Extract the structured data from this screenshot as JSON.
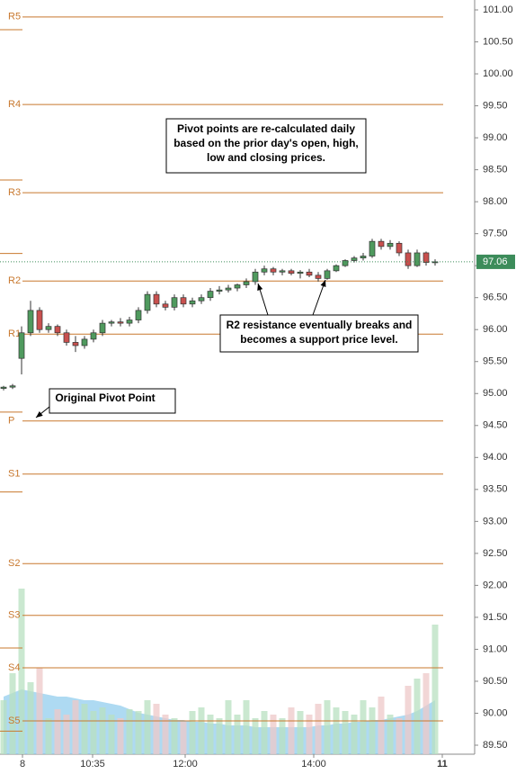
{
  "chart_data": {
    "type": "candlestick",
    "ylim": [
      89.45,
      101.08
    ],
    "yticks": [
      {
        "value": 101,
        "label": "101.00"
      },
      {
        "value": 100.5,
        "label": "100.50"
      },
      {
        "value": 100,
        "label": "100.00"
      },
      {
        "value": 99.5,
        "label": "99.50"
      },
      {
        "value": 99,
        "label": "99.00"
      },
      {
        "value": 98.5,
        "label": "98.50"
      },
      {
        "value": 98,
        "label": "98.00"
      },
      {
        "value": 97.5,
        "label": "97.50"
      },
      {
        "value": 97,
        "label": "97.00"
      },
      {
        "value": 96.5,
        "label": "96.50"
      },
      {
        "value": 96,
        "label": "96.00"
      },
      {
        "value": 95.5,
        "label": "95.50"
      },
      {
        "value": 95,
        "label": "95.00"
      },
      {
        "value": 94.5,
        "label": "94.50"
      },
      {
        "value": 94,
        "label": "94.00"
      },
      {
        "value": 93.5,
        "label": "93.50"
      },
      {
        "value": 93,
        "label": "93.00"
      },
      {
        "value": 92.5,
        "label": "92.50"
      },
      {
        "value": 92,
        "label": "92.00"
      },
      {
        "value": 91.5,
        "label": "91.50"
      },
      {
        "value": 91,
        "label": "91.00"
      },
      {
        "value": 90.5,
        "label": "90.50"
      },
      {
        "value": 90,
        "label": "90.00"
      },
      {
        "value": 89.5,
        "label": "89.50"
      }
    ],
    "xlim": [
      -0.4,
      52.4
    ],
    "xticks": [
      {
        "value": 2.1,
        "label": "8"
      },
      {
        "value": 9.9,
        "label": "10:35"
      },
      {
        "value": 20.2,
        "label": "12:00"
      },
      {
        "value": 34.5,
        "label": "14:00"
      },
      {
        "value": 48.8,
        "label": "11"
      }
    ],
    "open": [
      95.08,
      95.1,
      95.55,
      95.95,
      96.3,
      96.0,
      96.05,
      95.95,
      95.8,
      95.75,
      95.85,
      95.95,
      96.1,
      96.12,
      96.1,
      96.15,
      96.3,
      96.55,
      96.4,
      96.35,
      96.5,
      96.4,
      96.45,
      96.5,
      96.6,
      96.62,
      96.65,
      96.7,
      96.75,
      96.9,
      96.95,
      96.9,
      96.92,
      96.88,
      96.9,
      96.85,
      96.8,
      96.92,
      97.0,
      97.08,
      97.12,
      97.15,
      97.38,
      97.3,
      97.35,
      97.2,
      97.0,
      97.2,
      97.05
    ],
    "high": [
      95.12,
      95.15,
      96.05,
      96.45,
      96.35,
      96.1,
      96.08,
      96.0,
      95.9,
      95.9,
      96.0,
      96.15,
      96.15,
      96.18,
      96.2,
      96.35,
      96.6,
      96.6,
      96.45,
      96.55,
      96.55,
      96.5,
      96.55,
      96.65,
      96.68,
      96.7,
      96.72,
      96.8,
      96.95,
      97.0,
      96.98,
      96.95,
      96.95,
      96.93,
      96.95,
      96.9,
      96.95,
      97.02,
      97.1,
      97.15,
      97.2,
      97.42,
      97.42,
      97.4,
      97.38,
      97.25,
      97.25,
      97.22,
      97.1
    ],
    "low": [
      95.05,
      95.07,
      95.3,
      95.9,
      95.95,
      95.95,
      95.9,
      95.75,
      95.65,
      95.7,
      95.8,
      95.9,
      96.05,
      96.05,
      96.05,
      96.1,
      96.25,
      96.35,
      96.3,
      96.3,
      96.35,
      96.35,
      96.4,
      96.45,
      96.55,
      96.58,
      96.6,
      96.65,
      96.7,
      96.85,
      96.85,
      96.85,
      96.85,
      96.8,
      96.82,
      96.75,
      96.78,
      96.9,
      96.98,
      97.05,
      97.08,
      97.12,
      97.25,
      97.25,
      97.15,
      96.95,
      96.98,
      97.0,
      97.0
    ],
    "close": [
      95.1,
      95.12,
      95.95,
      96.3,
      96.0,
      96.05,
      95.95,
      95.8,
      95.75,
      95.85,
      95.95,
      96.1,
      96.12,
      96.1,
      96.15,
      96.3,
      96.55,
      96.4,
      96.35,
      96.5,
      96.4,
      96.45,
      96.5,
      96.6,
      96.62,
      96.65,
      96.7,
      96.75,
      96.9,
      96.95,
      96.9,
      96.92,
      96.88,
      96.9,
      96.85,
      96.8,
      96.92,
      97.0,
      97.08,
      97.12,
      97.15,
      97.38,
      97.3,
      97.35,
      97.2,
      97.0,
      97.2,
      97.05,
      97.06
    ],
    "volume_lim": [
      0,
      100
    ],
    "volume": [
      30,
      45,
      92,
      40,
      48,
      20,
      25,
      22,
      30,
      28,
      24,
      26,
      22,
      20,
      25,
      24,
      30,
      28,
      22,
      20,
      18,
      24,
      26,
      22,
      20,
      30,
      22,
      30,
      20,
      24,
      22,
      20,
      26,
      24,
      22,
      28,
      30,
      26,
      24,
      22,
      30,
      26,
      32,
      22,
      20,
      38,
      42,
      45,
      72
    ],
    "volume_avg": [
      32,
      34,
      36,
      35,
      34,
      33,
      32,
      32,
      31,
      30,
      30,
      29,
      28,
      27,
      25,
      23,
      22,
      21,
      20,
      19,
      19,
      18,
      18,
      17,
      17,
      16,
      16,
      16,
      15,
      15,
      15,
      15,
      15,
      15,
      15,
      16,
      16,
      17,
      17,
      18,
      18,
      19,
      19,
      20,
      21,
      22,
      24,
      27,
      30
    ],
    "pivots": [
      {
        "label": "R5",
        "value": 100.89
      },
      {
        "label": "R4",
        "value": 99.52
      },
      {
        "label": "R3",
        "value": 98.14
      },
      {
        "label": "R2",
        "value": 96.76
      },
      {
        "label": "R1",
        "value": 95.93
      },
      {
        "label": "P",
        "value": 94.57
      },
      {
        "label": "S1",
        "value": 93.74
      },
      {
        "label": "S2",
        "value": 92.34
      },
      {
        "label": "S3",
        "value": 91.53
      },
      {
        "label": "S4",
        "value": 90.71
      },
      {
        "label": "S5",
        "value": 89.88
      }
    ],
    "prior_pivot_levels": [
      100.69,
      98.34,
      97.19,
      94.71,
      93.46,
      91.02,
      89.72
    ],
    "last_price": 97.06,
    "annotations": {
      "pivot_note": [
        "Pivot points are re-calculated daily",
        "based on the prior day's open, high,",
        "low and closing prices."
      ],
      "r2_note": [
        "R2 resistance eventually breaks and",
        "becomes a support price level."
      ],
      "original_pivot": "Original Pivot Point"
    }
  }
}
